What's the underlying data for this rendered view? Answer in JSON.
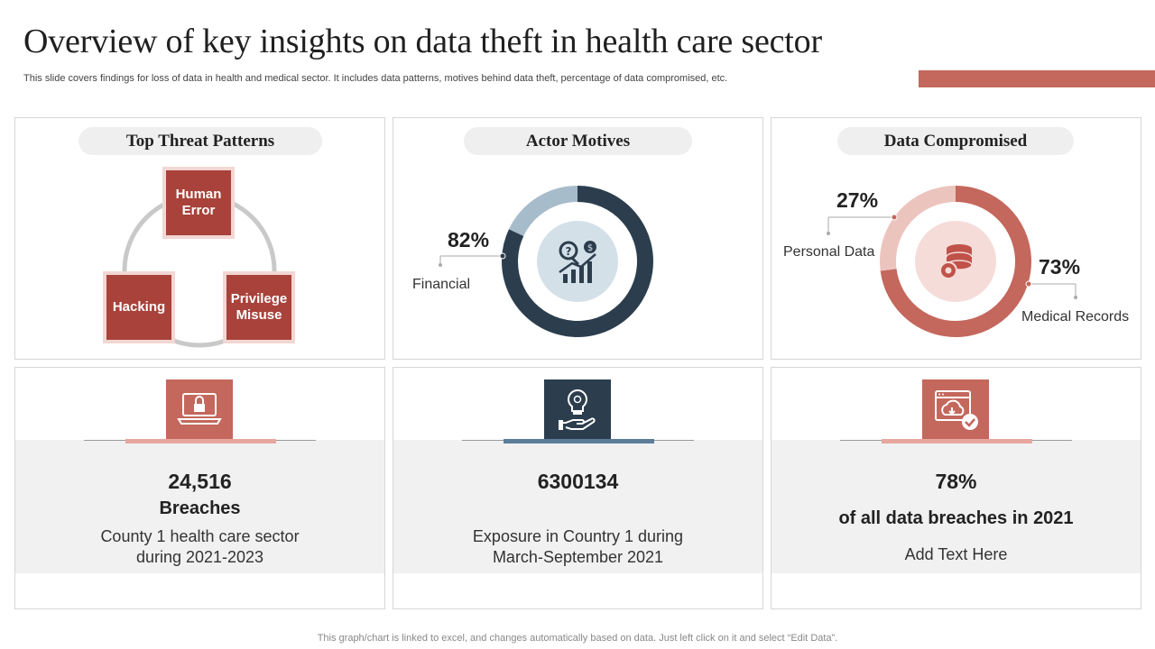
{
  "title": "Overview of key insights on data theft in health care sector",
  "subtitle": "This slide covers findings for loss of data in health and medical sector. It includes data patterns, motives behind data theft, percentage of data compromised, etc.",
  "colors": {
    "accent": "#c4675c",
    "dark_red": "#a8423a",
    "navy": "#2c3e4e",
    "light_blue": "#a7bccb"
  },
  "threats": {
    "heading": "Top Threat Patterns",
    "items": [
      "Human Error",
      "Hacking",
      "Privilege Misuse"
    ]
  },
  "motives": {
    "heading": "Actor Motives",
    "percent": "82%",
    "label": "Financial",
    "value": 82,
    "icon": "analytics-icon"
  },
  "compromised": {
    "heading": "Data Compromised",
    "personal_percent": "27%",
    "personal_label": "Personal Data",
    "medical_percent": "73%",
    "medical_label": "Medical Records",
    "personal_value": 27,
    "medical_value": 73,
    "icon": "database-gear-icon"
  },
  "stats": [
    {
      "number": "24,516",
      "bold": "Breaches",
      "desc1": "County 1 health care sector",
      "desc2": "during 2021-2023",
      "icon": "laptop-lock-icon"
    },
    {
      "number": "6300134",
      "desc1": "Exposure in Country 1 during",
      "desc2": "March-September 2021",
      "icon": "idea-hand-icon"
    },
    {
      "number": "78%",
      "bold": "of all data breaches in 2021",
      "desc1": "Add Text Here",
      "icon": "cloud-browser-icon"
    }
  ],
  "footer": "This graph/chart is linked to excel,  and changes automatically based on data. Just left click on it and select “Edit Data”."
}
